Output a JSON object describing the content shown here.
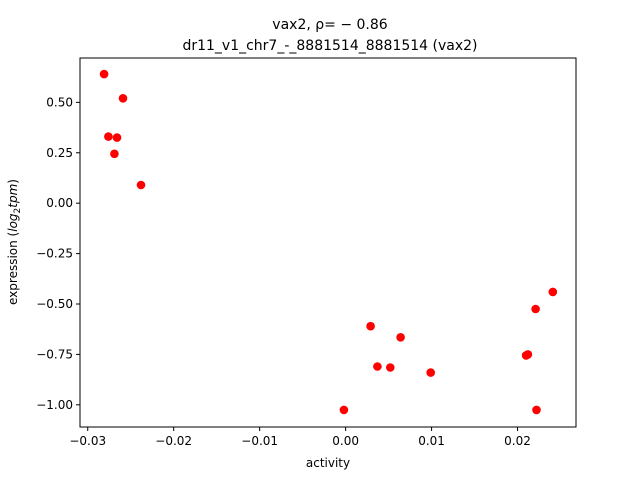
{
  "chart_data": {
    "type": "scatter",
    "title_line1": "vax2, ρ= − 0.86",
    "title_line2": "dr11_v1_chr7_-_8881514_8881514 (vax2)",
    "xlabel": "activity",
    "ylabel_prefix": "expression (",
    "ylabel_math": "log",
    "ylabel_sub": "2",
    "ylabel_math2": "tpm",
    "ylabel_suffix": ")",
    "xlim": [
      -0.0309,
      0.0268
    ],
    "ylim": [
      -1.11,
      0.72
    ],
    "x_ticks": [
      -0.03,
      -0.02,
      -0.01,
      0.0,
      0.01,
      0.02
    ],
    "x_tick_labels": [
      "−0.03",
      "−0.02",
      "−0.01",
      "0.00",
      "0.01",
      "0.02"
    ],
    "y_ticks": [
      0.5,
      0.25,
      0.0,
      -0.25,
      -0.5,
      -0.75,
      -1.0
    ],
    "y_tick_labels": [
      "0.50",
      "0.25",
      "0.00",
      "−0.25",
      "−0.50",
      "−0.75",
      "−1.00"
    ],
    "point_color": "#ff0000",
    "points": [
      {
        "x": -0.0281,
        "y": 0.64
      },
      {
        "x": -0.0259,
        "y": 0.52
      },
      {
        "x": -0.0276,
        "y": 0.33
      },
      {
        "x": -0.0266,
        "y": 0.325
      },
      {
        "x": -0.0269,
        "y": 0.245
      },
      {
        "x": -0.0238,
        "y": 0.09
      },
      {
        "x": 0.0029,
        "y": -0.61
      },
      {
        "x": 0.0064,
        "y": -0.665
      },
      {
        "x": 0.0037,
        "y": -0.81
      },
      {
        "x": 0.0052,
        "y": -0.815
      },
      {
        "x": 0.0099,
        "y": -0.84
      },
      {
        "x": -0.0002,
        "y": -1.025
      },
      {
        "x": 0.0241,
        "y": -0.44
      },
      {
        "x": 0.0221,
        "y": -0.525
      },
      {
        "x": 0.0212,
        "y": -0.75
      },
      {
        "x": 0.021,
        "y": -0.755
      },
      {
        "x": 0.0222,
        "y": -1.025
      }
    ]
  }
}
